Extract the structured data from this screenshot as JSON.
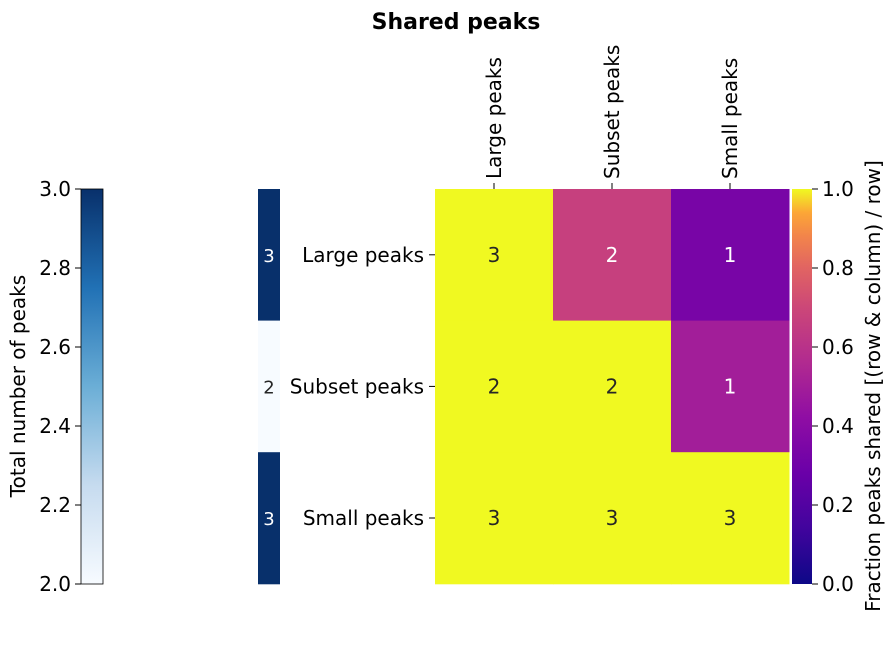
{
  "chart_data": {
    "type": "heatmap",
    "title": "Shared peaks",
    "rows": [
      "Large peaks",
      "Subset peaks",
      "Small peaks"
    ],
    "columns": [
      "Large peaks",
      "Subset peaks",
      "Small peaks"
    ],
    "counts": [
      [
        3,
        2,
        1
      ],
      [
        2,
        2,
        1
      ],
      [
        3,
        3,
        3
      ]
    ],
    "fractions": [
      [
        1.0,
        0.6667,
        0.3333
      ],
      [
        1.0,
        1.0,
        0.5
      ],
      [
        1.0,
        1.0,
        1.0
      ]
    ],
    "row_totals": [
      3,
      2,
      3
    ],
    "colorbar_main": {
      "label": "Fraction peaks shared [(row & column) / row]",
      "range": [
        0.0,
        1.0
      ],
      "ticks": [
        "0.0",
        "0.2",
        "0.4",
        "0.6",
        "0.8",
        "1.0"
      ],
      "colormap": "plasma"
    },
    "colorbar_totals": {
      "label": "Total number of peaks",
      "range": [
        2.0,
        3.0
      ],
      "ticks": [
        "2.0",
        "2.2",
        "2.4",
        "2.6",
        "2.8",
        "3.0"
      ],
      "colormap": "Blues"
    }
  }
}
